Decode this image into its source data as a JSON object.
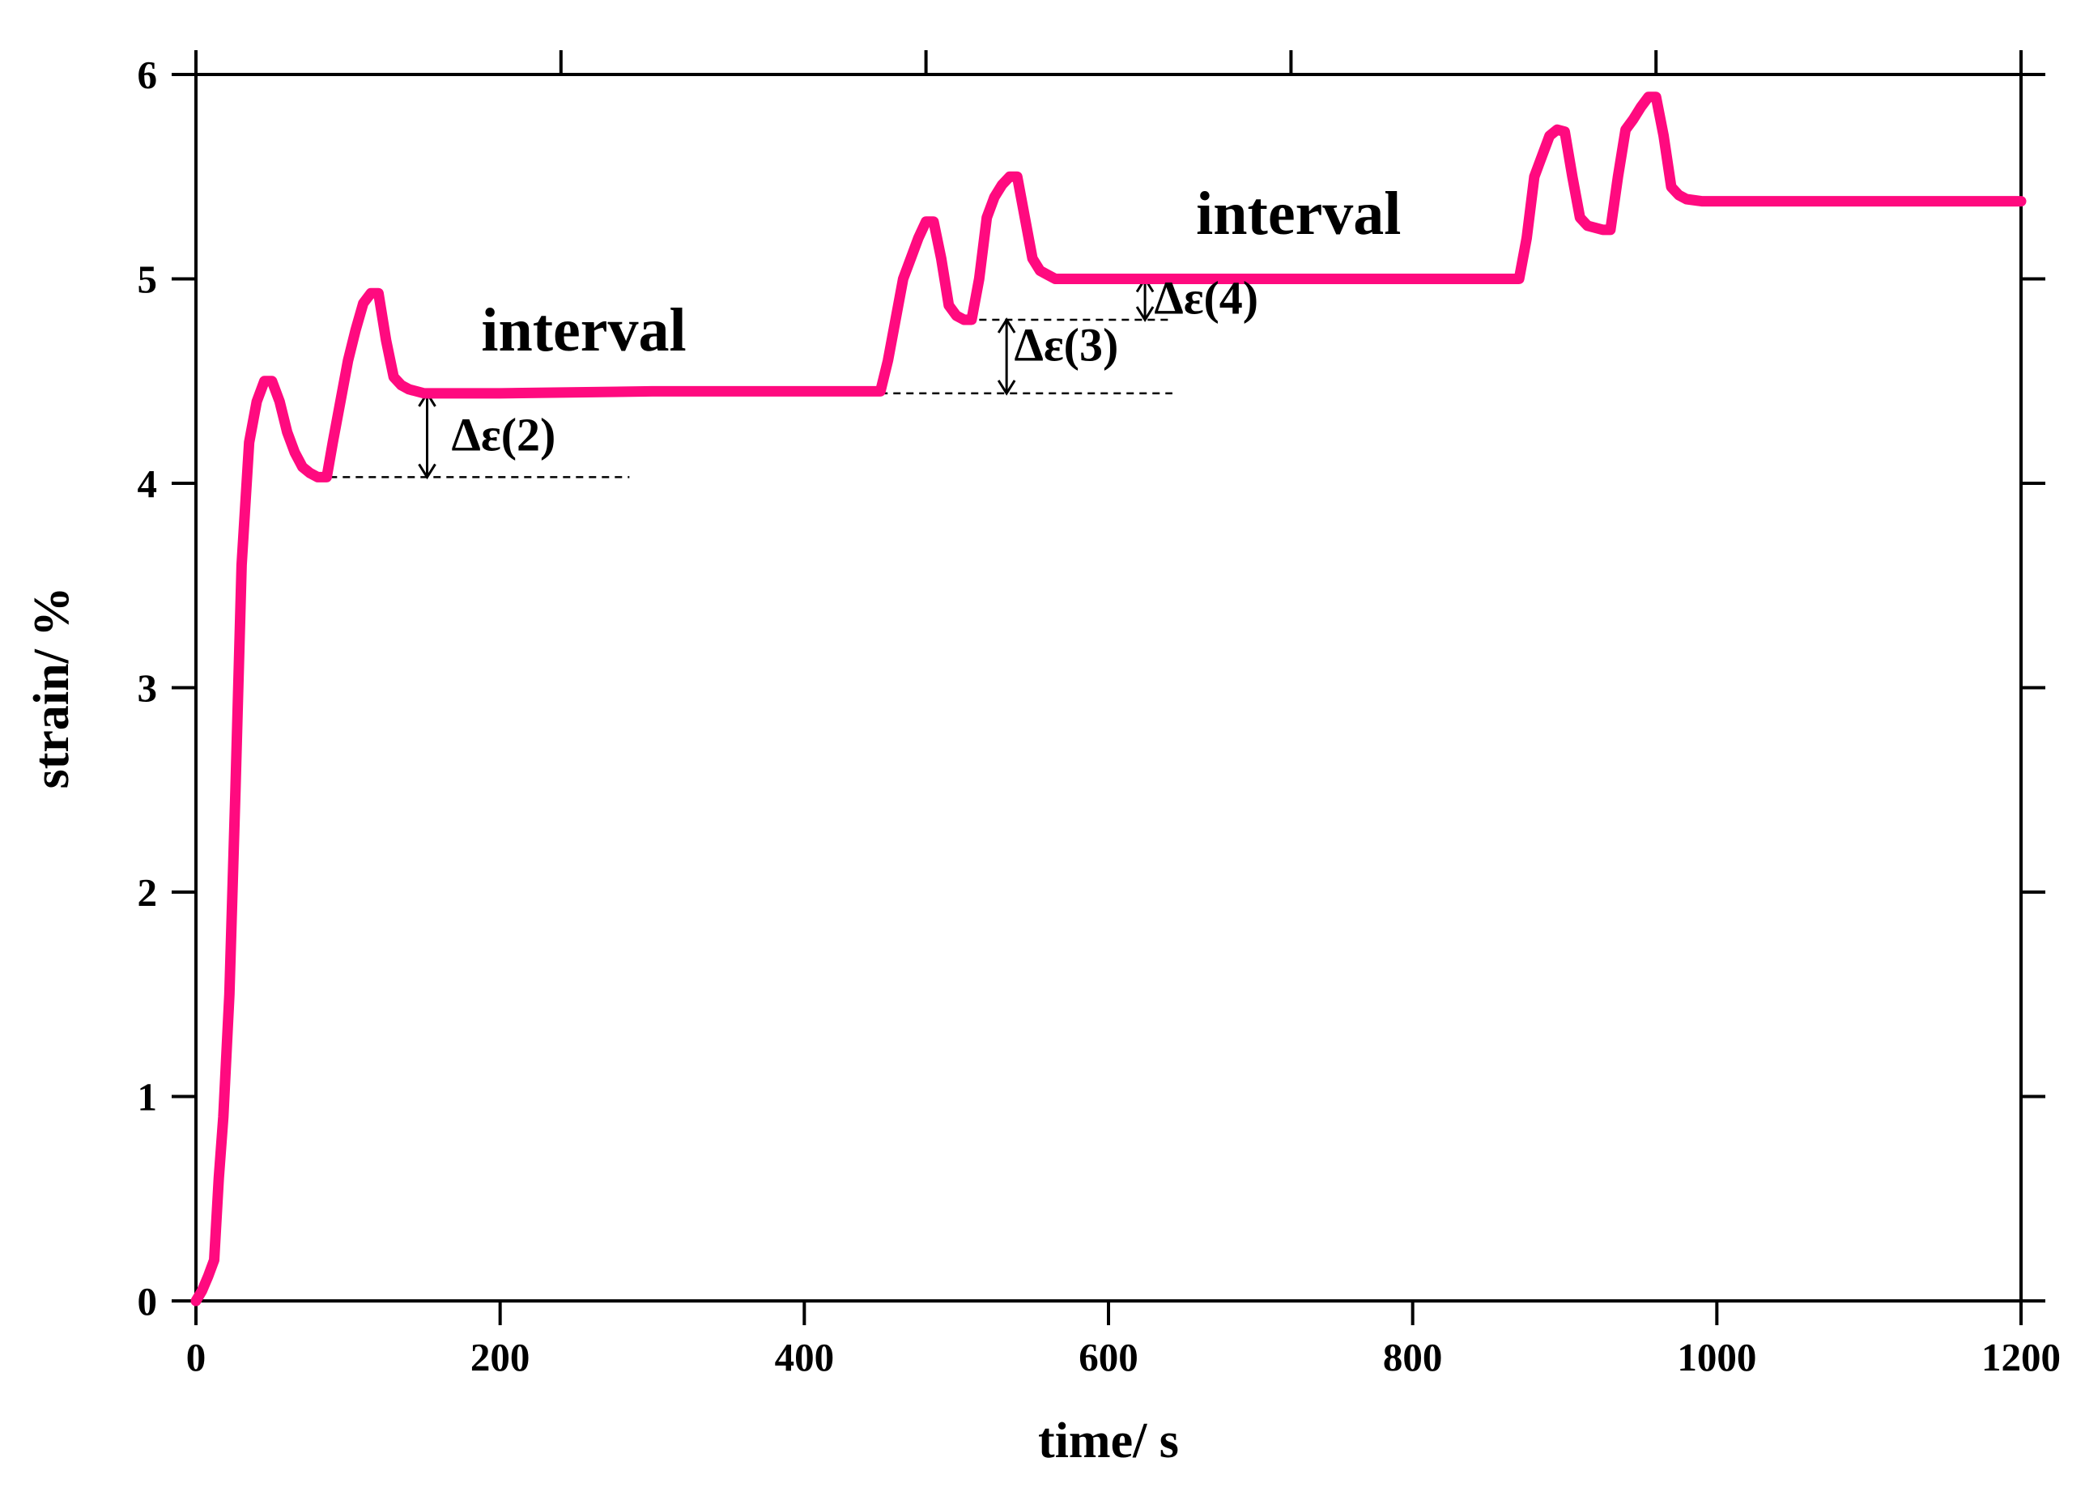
{
  "chart_data": {
    "type": "line",
    "title": "",
    "xlabel": "time/ s",
    "ylabel": "strain/ %",
    "xlim": [
      0,
      1200
    ],
    "ylim": [
      0,
      6
    ],
    "xticks": [
      0,
      200,
      400,
      600,
      800,
      1000,
      1200
    ],
    "yticks": [
      0,
      1,
      2,
      3,
      4,
      5,
      6
    ],
    "xticks_minor": [
      0,
      240,
      480,
      720,
      960,
      1200
    ],
    "grid": false,
    "colors": {
      "series": "#FF0A7F",
      "axis": "#000000"
    },
    "series": [
      {
        "name": "strain",
        "x": [
          0,
          4,
          8,
          12,
          15,
          18,
          22,
          26,
          30,
          35,
          40,
          45,
          50,
          55,
          60,
          65,
          70,
          75,
          80,
          86,
          90,
          95,
          100,
          105,
          110,
          115,
          120,
          125,
          130,
          135,
          140,
          145,
          150,
          160,
          200,
          300,
          400,
          450,
          455,
          460,
          465,
          470,
          475,
          480,
          485,
          490,
          495,
          500,
          505,
          510,
          515,
          520,
          525,
          530,
          535,
          540,
          545,
          550,
          555,
          560,
          565,
          570,
          580,
          600,
          700,
          800,
          860,
          870,
          875,
          880,
          885,
          890,
          895,
          900,
          905,
          910,
          915,
          920,
          925,
          930,
          935,
          940,
          945,
          950,
          955,
          960,
          965,
          970,
          975,
          980,
          990,
          1000,
          1100,
          1200
        ],
        "values": [
          0,
          0.05,
          0.12,
          0.2,
          0.6,
          0.9,
          1.5,
          2.5,
          3.6,
          4.2,
          4.4,
          4.5,
          4.5,
          4.4,
          4.25,
          4.15,
          4.08,
          4.05,
          4.03,
          4.03,
          4.2,
          4.4,
          4.6,
          4.75,
          4.88,
          4.93,
          4.93,
          4.7,
          4.52,
          4.48,
          4.46,
          4.45,
          4.44,
          4.44,
          4.44,
          4.45,
          4.45,
          4.45,
          4.6,
          4.8,
          5.0,
          5.1,
          5.2,
          5.28,
          5.28,
          5.1,
          4.87,
          4.82,
          4.8,
          4.8,
          5.0,
          5.3,
          5.4,
          5.46,
          5.5,
          5.5,
          5.3,
          5.1,
          5.04,
          5.02,
          5.0,
          5.0,
          5.0,
          5.0,
          5.0,
          5.0,
          5.0,
          5.0,
          5.2,
          5.5,
          5.6,
          5.7,
          5.73,
          5.72,
          5.5,
          5.3,
          5.26,
          5.25,
          5.24,
          5.24,
          5.5,
          5.73,
          5.78,
          5.84,
          5.89,
          5.89,
          5.7,
          5.45,
          5.41,
          5.39,
          5.38,
          5.38,
          5.38,
          5.38
        ]
      }
    ],
    "annotations": [
      {
        "text": "interval",
        "x": 255,
        "y": 4.65,
        "size": "large"
      },
      {
        "text": "interval",
        "x": 725,
        "y": 5.22,
        "size": "large"
      },
      {
        "text": "Δε(2)",
        "x": 168,
        "y": 4.16,
        "size": "medium"
      },
      {
        "text": "Δε(3)",
        "x": 538,
        "y": 4.6,
        "size": "medium"
      },
      {
        "text": "Δε(4)",
        "x": 630,
        "y": 4.83,
        "size": "medium"
      }
    ],
    "reference_lines": [
      {
        "x0": 88,
        "x1": 285,
        "y": 4.03
      },
      {
        "x0": 450,
        "x1": 642,
        "y": 4.44
      },
      {
        "x0": 515,
        "x1": 640,
        "y": 4.8
      }
    ],
    "arrows": [
      {
        "x": 152,
        "y0": 4.03,
        "y1": 4.44
      },
      {
        "x": 533,
        "y0": 4.44,
        "y1": 4.8
      },
      {
        "x": 624,
        "y0": 4.8,
        "y1": 5.0
      }
    ]
  }
}
